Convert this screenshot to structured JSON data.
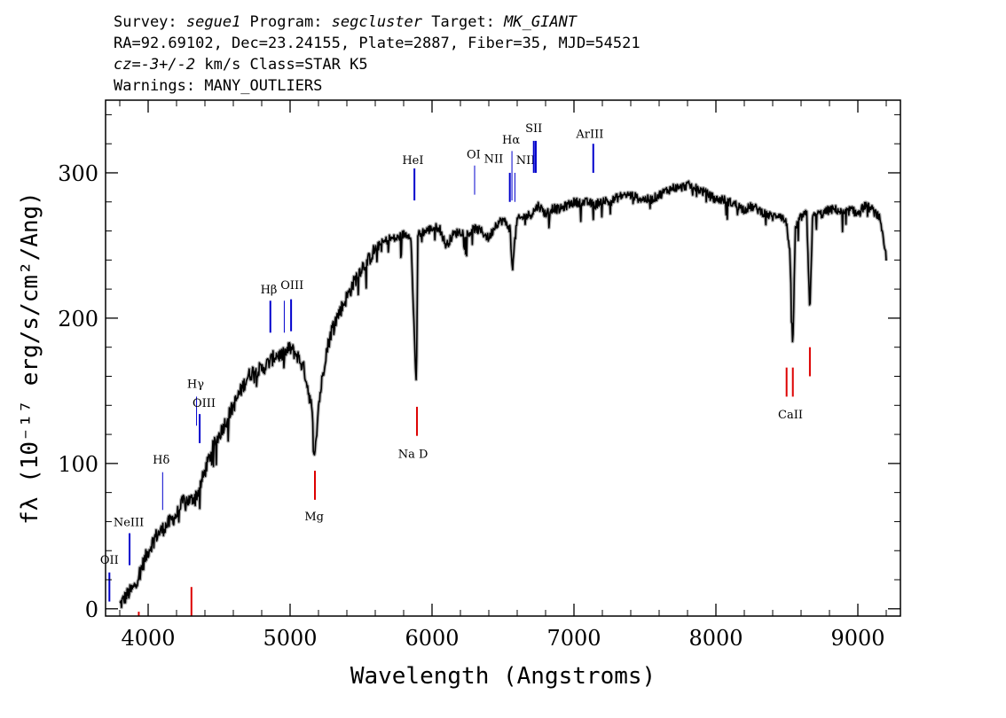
{
  "chart_data": {
    "type": "line",
    "header": {
      "line1": {
        "survey_label": "Survey: ",
        "survey": "segue1",
        "program_label": " Program: ",
        "program": "segcluster",
        "target_label": " Target: ",
        "target": "MK_GIANT"
      },
      "line2": "RA=92.69102, Dec=23.24155, Plate=2887, Fiber=35, MJD=54521",
      "line3": {
        "cz": "cz=-3+/-2",
        "rest": " km/s Class=STAR K5"
      },
      "line4": "Warnings: MANY_OUTLIERS"
    },
    "xlabel": "Wavelength (Angstroms)",
    "ylabel": "fλ (10⁻¹⁷ erg/s/cm²/Ang)",
    "xlim": [
      3700,
      9300
    ],
    "ylim": [
      -5,
      350
    ],
    "xticks": [
      4000,
      5000,
      6000,
      7000,
      8000,
      9000
    ],
    "yticks": [
      0,
      100,
      200,
      300
    ],
    "colors": {
      "emission": "#0000cc",
      "absorption": "#dd0000",
      "flux": "#000000",
      "error": "#b0b0b0"
    },
    "series": [
      {
        "x": [
          3800,
          3850,
          3900,
          3950,
          4000,
          4050,
          4100,
          4150,
          4200,
          4250,
          4300,
          4350,
          4400,
          4450,
          4500,
          4550,
          4600,
          4650,
          4700,
          4750,
          4800,
          4850,
          4900,
          4950,
          5000,
          5050,
          5100,
          5150,
          5175,
          5200,
          5250,
          5300,
          5350,
          5400,
          5450,
          5500,
          5550,
          5600,
          5650,
          5700,
          5750,
          5800,
          5850,
          5890,
          5900,
          5950,
          6000,
          6050,
          6100,
          6150,
          6200,
          6250,
          6300,
          6350,
          6400,
          6450,
          6500,
          6550,
          6563,
          6600,
          6650,
          6700,
          6750,
          6800,
          6850,
          6900,
          6950,
          7000,
          7050,
          7100,
          7150,
          7200,
          7250,
          7300,
          7350,
          7400,
          7450,
          7500,
          7550,
          7600,
          7650,
          7700,
          7750,
          7800,
          7850,
          7900,
          7950,
          8000,
          8050,
          8100,
          8150,
          8200,
          8250,
          8300,
          8350,
          8400,
          8450,
          8500,
          8520,
          8542,
          8560,
          8600,
          8640,
          8662,
          8680,
          8700,
          8750,
          8800,
          8850,
          8900,
          8950,
          9000,
          9050,
          9100,
          9150,
          9200
        ],
        "y": [
          3,
          10,
          15,
          28,
          40,
          50,
          55,
          60,
          65,
          75,
          75,
          80,
          95,
          110,
          120,
          130,
          140,
          150,
          160,
          165,
          165,
          170,
          175,
          175,
          180,
          175,
          165,
          140,
          105,
          140,
          175,
          195,
          205,
          215,
          225,
          235,
          240,
          248,
          252,
          255,
          255,
          258,
          258,
          150,
          258,
          260,
          262,
          263,
          250,
          258,
          260,
          258,
          262,
          260,
          255,
          265,
          268,
          262,
          235,
          268,
          270,
          272,
          278,
          272,
          276,
          275,
          278,
          280,
          280,
          280,
          278,
          282,
          280,
          283,
          285,
          285,
          283,
          282,
          282,
          285,
          288,
          290,
          290,
          292,
          290,
          288,
          285,
          282,
          282,
          280,
          278,
          275,
          277,
          275,
          272,
          270,
          272,
          265,
          245,
          180,
          262,
          270,
          272,
          205,
          268,
          272,
          272,
          275,
          275,
          272,
          275,
          272,
          278,
          275,
          270,
          242
        ]
      }
    ],
    "lines": [
      {
        "label": "OII",
        "x": 3727,
        "y0": 5,
        "y1": 25,
        "color": "#0000cc",
        "w": 2,
        "lx": 3727,
        "ly": 31
      },
      {
        "label": "NeIII",
        "x": 3869,
        "y0": 30,
        "y1": 52,
        "color": "#0000cc",
        "w": 2,
        "lx": 3863,
        "ly": 57
      },
      {
        "label": "Hδ",
        "x": 4102,
        "y0": 68,
        "y1": 94,
        "color": "#0000cc",
        "w": 1,
        "lx": 4092,
        "ly": 100
      },
      {
        "label": "Hγ",
        "x": 4341,
        "y0": 126,
        "y1": 146,
        "color": "#0000cc",
        "w": 1,
        "lx": 4334,
        "ly": 152
      },
      {
        "label": "OIII",
        "x": 4363,
        "y0": 114,
        "y1": 134,
        "color": "#0000cc",
        "w": 2,
        "lx": 4394,
        "ly": 139
      },
      {
        "label": "Hβ",
        "x": 4861,
        "y0": 190,
        "y1": 212,
        "color": "#0000cc",
        "w": 2,
        "lx": 4850,
        "ly": 217
      },
      {
        "label": "OIII",
        "x": 4959,
        "y0": 190,
        "y1": 212,
        "color": "#0000cc",
        "w": 1,
        "lx": 5014,
        "ly": 220
      },
      {
        "label": "",
        "x": 5007,
        "y0": 191,
        "y1": 213,
        "color": "#0000cc",
        "w": 2,
        "lx": 0,
        "ly": 0
      },
      {
        "label": "HeI",
        "x": 5876,
        "y0": 281,
        "y1": 303,
        "color": "#0000cc",
        "w": 2,
        "lx": 5865,
        "ly": 306
      },
      {
        "label": "OI",
        "x": 6300,
        "y0": 285,
        "y1": 305,
        "color": "#0000cc",
        "w": 1,
        "lx": 6293,
        "ly": 310
      },
      {
        "label": "NII",
        "x": 6548,
        "y0": 280,
        "y1": 300,
        "color": "#0000cc",
        "w": 2,
        "lx": 6434,
        "ly": 307
      },
      {
        "label": "Hα",
        "x": 6563,
        "y0": 281,
        "y1": 315,
        "color": "#0000cc",
        "w": 1,
        "lx": 6557,
        "ly": 320
      },
      {
        "label": "NII",
        "x": 6584,
        "y0": 280,
        "y1": 300,
        "color": "#0000cc",
        "w": 1,
        "lx": 6660,
        "ly": 306
      },
      {
        "label": "SII",
        "x": 6717,
        "y0": 300,
        "y1": 322,
        "color": "#0000cc",
        "w": 2,
        "lx": 6717,
        "ly": 328
      },
      {
        "label": "",
        "x": 6731,
        "y0": 300,
        "y1": 322,
        "color": "#0000cc",
        "w": 2,
        "lx": 0,
        "ly": 0
      },
      {
        "label": "ArIII",
        "x": 7136,
        "y0": 300,
        "y1": 320,
        "color": "#0000cc",
        "w": 2,
        "lx": 7112,
        "ly": 324
      },
      {
        "label": "",
        "x": 3934,
        "y0": -5,
        "y1": -2,
        "color": "#dd0000",
        "w": 2,
        "lx": 0,
        "ly": 0
      },
      {
        "label": "",
        "x": 4305,
        "y0": -5,
        "y1": 15,
        "color": "#dd0000",
        "w": 2,
        "lx": 0,
        "ly": 0
      },
      {
        "label": "Mg",
        "x": 5175,
        "y0": 75,
        "y1": 95,
        "color": "#dd0000",
        "w": 2,
        "lx": 5170,
        "ly": 61
      },
      {
        "label": "Na D",
        "x": 5894,
        "y0": 119,
        "y1": 139,
        "color": "#dd0000",
        "w": 2,
        "lx": 5866,
        "ly": 104
      },
      {
        "label": "CaII",
        "x": 8498,
        "y0": 146,
        "y1": 166,
        "color": "#dd0000",
        "w": 2,
        "lx": 8525,
        "ly": 131
      },
      {
        "label": "",
        "x": 8542,
        "y0": 146,
        "y1": 166,
        "color": "#dd0000",
        "w": 2,
        "lx": 0,
        "ly": 0
      },
      {
        "label": "",
        "x": 8662,
        "y0": 160,
        "y1": 180,
        "color": "#dd0000",
        "w": 2,
        "lx": 0,
        "ly": 0
      }
    ]
  }
}
